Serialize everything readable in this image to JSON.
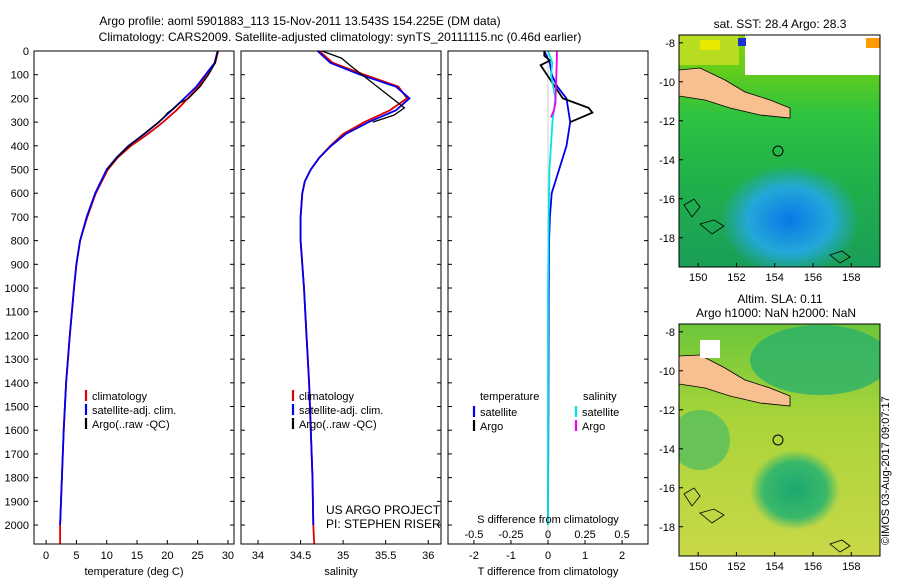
{
  "header": {
    "line1": "Argo profile: aoml 5901883_113 15-Nov-2011 13.543S 154.225E (DM data)",
    "line2": "Climatology: CARS2009. Satellite-adjusted climatology: synTS_20111115.nc (0.46d earlier)"
  },
  "credits": {
    "project": "US ARGO PROJECT",
    "pi": "PI: STEPHEN RISER"
  },
  "watermark": "©IMOS 03-Aug-2017 09:07:17",
  "maps": {
    "sst_title": "sat. SST: 28.4 Argo: 28.3",
    "sla_title1": "Altim. SLA: 0.11",
    "sla_title2": "Argo h1000: NaN h2000: NaN",
    "xticks": [
      "150",
      "152",
      "154",
      "156",
      "158"
    ],
    "yticks": [
      "-8",
      "-10",
      "-12",
      "-14",
      "-16",
      "-18"
    ],
    "float_lon": 154.225,
    "float_lat": -13.543
  },
  "colors": {
    "climatology": "#e00000",
    "satellite": "#0000ee",
    "argo": "#000000",
    "sat_salinity": "#00e5e5",
    "argo_salinity": "#ee00ee"
  },
  "chart_data": [
    {
      "type": "line",
      "xlabel": "temperature (deg C)",
      "ylabel": "",
      "xlim": [
        -2,
        31
      ],
      "ylim": [
        2080,
        0
      ],
      "xticks": [
        0,
        5,
        10,
        15,
        20,
        25,
        30
      ],
      "yticks": [
        0,
        100,
        200,
        300,
        400,
        500,
        600,
        700,
        800,
        900,
        1000,
        1100,
        1200,
        1300,
        1400,
        1500,
        1600,
        1700,
        1800,
        1900,
        2000
      ],
      "legend": [
        "climatology",
        "satellite-adj. clim.",
        "Argo(..raw -QC)"
      ],
      "series": [
        {
          "name": "climatology",
          "depth": [
            0,
            50,
            100,
            150,
            200,
            250,
            300,
            350,
            400,
            450,
            500,
            600,
            700,
            800,
            900,
            1000,
            1200,
            1400,
            1600,
            1800,
            2000,
            2080
          ],
          "values": [
            28.4,
            27.9,
            26.5,
            25.2,
            23.4,
            21.5,
            19.3,
            16.8,
            14.0,
            11.8,
            10.2,
            8.2,
            6.8,
            5.6,
            5.0,
            4.6,
            3.9,
            3.3,
            2.9,
            2.6,
            2.3,
            2.3
          ]
        },
        {
          "name": "satellite-adj. clim.",
          "depth": [
            0,
            50,
            100,
            150,
            200,
            250,
            300,
            350,
            400,
            450,
            500,
            600,
            700,
            800,
            900,
            1000,
            1200,
            1400,
            1600,
            1800,
            2000
          ],
          "values": [
            28.3,
            27.8,
            26.3,
            24.8,
            22.8,
            20.7,
            18.6,
            16.2,
            13.6,
            11.6,
            10.0,
            8.1,
            6.7,
            5.6,
            5.0,
            4.6,
            3.9,
            3.3,
            2.9,
            2.6,
            2.3
          ]
        },
        {
          "name": "Argo(..raw -QC)",
          "depth": [
            0,
            50,
            100,
            150,
            200,
            220,
            240,
            260,
            280,
            300,
            350,
            400,
            450,
            500
          ],
          "values": [
            28.3,
            27.9,
            26.8,
            25.4,
            23.5,
            22.0,
            21.2,
            20.1,
            19.4,
            18.6,
            16.1,
            13.7,
            11.7,
            10.1
          ]
        }
      ]
    },
    {
      "type": "line",
      "xlabel": "salinity",
      "ylabel": "",
      "xlim": [
        33.8,
        36.15
      ],
      "ylim": [
        2080,
        0
      ],
      "xticks": [
        34,
        34.5,
        35,
        35.5,
        36
      ],
      "legend": [
        "climatology",
        "satellite-adj. clim.",
        "Argo(..raw -QC)"
      ],
      "series": [
        {
          "name": "climatology",
          "depth": [
            0,
            50,
            100,
            150,
            200,
            250,
            300,
            350,
            400,
            450,
            500,
            550,
            600,
            700,
            800,
            900,
            1000,
            1200,
            1400,
            1600,
            1800,
            2000,
            2080
          ],
          "values": [
            34.72,
            34.88,
            35.25,
            35.65,
            35.75,
            35.55,
            35.25,
            35.0,
            34.85,
            34.72,
            34.62,
            34.55,
            34.52,
            34.5,
            34.5,
            34.52,
            34.54,
            34.57,
            34.6,
            34.62,
            34.64,
            34.65,
            34.66
          ]
        },
        {
          "name": "satellite-adj. clim.",
          "depth": [
            0,
            50,
            100,
            150,
            200,
            250,
            300,
            350,
            400,
            450,
            500,
            550,
            600,
            700,
            800,
            900,
            1000,
            1200,
            1400,
            1600,
            1800,
            2000
          ],
          "values": [
            34.7,
            34.85,
            35.2,
            35.62,
            35.78,
            35.62,
            35.3,
            35.03,
            34.86,
            34.72,
            34.62,
            34.55,
            34.52,
            34.5,
            34.5,
            34.52,
            34.54,
            34.57,
            34.6,
            34.62,
            34.64,
            34.65
          ]
        },
        {
          "name": "Argo(..raw -QC)",
          "depth": [
            0,
            30,
            60,
            240,
            270,
            300
          ],
          "values": [
            34.75,
            34.98,
            35.08,
            35.72,
            35.6,
            35.35
          ]
        }
      ]
    },
    {
      "type": "line",
      "xlabel": "T difference from climatology",
      "x2label": "S difference from climatology",
      "ylabel": "",
      "xlim": [
        -2.7,
        2.7
      ],
      "x2lim": [
        -0.675,
        0.675
      ],
      "ylim": [
        2080,
        0
      ],
      "xticks": [
        -2,
        -1,
        0,
        1,
        2
      ],
      "x2ticks": [
        "-0.5",
        "-0.25",
        "0",
        "0.25",
        "0.5"
      ],
      "legend_temperature_title": "temperature",
      "legend_salinity_title": "salinity",
      "legend_temperature": [
        "satellite",
        "Argo"
      ],
      "legend_salinity": [
        "satellite",
        "Argo"
      ],
      "series": [
        {
          "name": "satellite",
          "depth": [
            0,
            50,
            100,
            150,
            200,
            300,
            400,
            500,
            600,
            700,
            800,
            1000,
            1500,
            2000
          ],
          "values": [
            -0.1,
            0.05,
            0.1,
            0.25,
            0.5,
            0.6,
            0.5,
            0.3,
            0.1,
            0.05,
            0.03,
            0.02,
            0.01,
            0.0
          ]
        },
        {
          "name": "Argo",
          "depth": [
            0,
            20,
            40,
            60,
            200,
            220,
            240,
            260,
            280,
            300
          ],
          "values": [
            -0.1,
            -0.1,
            0.05,
            -0.2,
            0.4,
            0.75,
            1.1,
            1.2,
            0.9,
            0.6
          ]
        },
        {
          "name": "satellite",
          "depth": [
            0,
            50,
            100,
            200,
            300,
            500,
            700,
            1000,
            1500,
            2000
          ],
          "values": [
            0.0,
            0.03,
            0.02,
            0.05,
            0.03,
            0.01,
            0.005,
            0.0,
            0.0,
            0.0
          ]
        },
        {
          "name": "Argo",
          "depth": [
            0,
            30,
            220,
            250,
            280
          ],
          "values": [
            0.06,
            0.06,
            0.05,
            0.04,
            0.02
          ]
        }
      ]
    }
  ]
}
